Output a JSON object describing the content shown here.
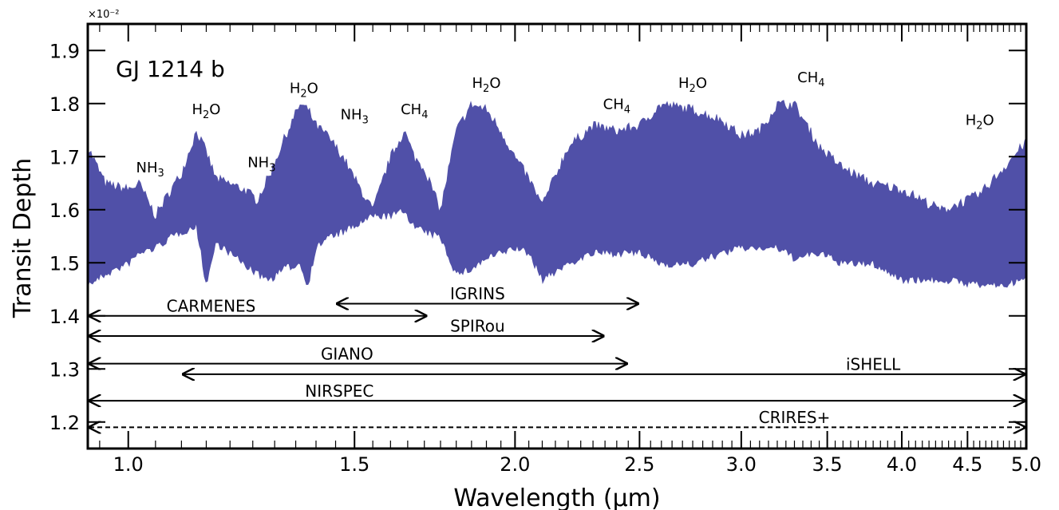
{
  "chart_data": {
    "type": "area",
    "title": "GJ 1214 b",
    "xlabel": "Wavelength (μm)",
    "ylabel": "Transit Depth",
    "y_multiplier": "×10⁻²",
    "x_scale": "log",
    "xlim": [
      0.93,
      5.0
    ],
    "ylim": [
      1.15,
      1.95
    ],
    "xticks": [
      1.0,
      1.5,
      2.0,
      2.5,
      3.0,
      3.5,
      4.0,
      4.5,
      5.0
    ],
    "xtick_labels": [
      "1.0",
      "1.5",
      "2.0",
      "2.5",
      "3.0",
      "3.5",
      "4.0",
      "4.5",
      "5.0"
    ],
    "yticks": [
      1.2,
      1.3,
      1.4,
      1.5,
      1.6,
      1.7,
      1.8,
      1.9
    ],
    "ytick_labels": [
      "1.2",
      "1.3",
      "1.4",
      "1.5",
      "1.6",
      "1.7",
      "1.8",
      "1.9"
    ],
    "color": "#5050a8",
    "spectrum": {
      "x": [
        0.93,
        0.96,
        1.0,
        1.02,
        1.05,
        1.08,
        1.1,
        1.13,
        1.15,
        1.17,
        1.2,
        1.23,
        1.26,
        1.29,
        1.32,
        1.36,
        1.38,
        1.4,
        1.43,
        1.47,
        1.5,
        1.55,
        1.6,
        1.64,
        1.67,
        1.7,
        1.75,
        1.8,
        1.85,
        1.9,
        1.95,
        2.0,
        2.05,
        2.1,
        2.2,
        2.3,
        2.4,
        2.5,
        2.6,
        2.75,
        2.9,
        3.0,
        3.1,
        3.2,
        3.3,
        3.45,
        3.6,
        3.8,
        4.0,
        4.3,
        4.6,
        4.8,
        5.0
      ],
      "upper": [
        1.72,
        1.65,
        1.64,
        1.65,
        1.59,
        1.64,
        1.67,
        1.75,
        1.71,
        1.66,
        1.65,
        1.64,
        1.62,
        1.67,
        1.73,
        1.8,
        1.79,
        1.76,
        1.74,
        1.7,
        1.66,
        1.6,
        1.7,
        1.75,
        1.7,
        1.68,
        1.6,
        1.75,
        1.8,
        1.79,
        1.75,
        1.7,
        1.66,
        1.61,
        1.72,
        1.76,
        1.75,
        1.76,
        1.8,
        1.79,
        1.77,
        1.74,
        1.75,
        1.8,
        1.8,
        1.72,
        1.68,
        1.65,
        1.64,
        1.6,
        1.63,
        1.68,
        1.73
      ],
      "lower": [
        1.46,
        1.48,
        1.5,
        1.52,
        1.53,
        1.55,
        1.56,
        1.57,
        1.46,
        1.54,
        1.52,
        1.5,
        1.48,
        1.47,
        1.49,
        1.5,
        1.46,
        1.53,
        1.55,
        1.56,
        1.57,
        1.59,
        1.59,
        1.6,
        1.57,
        1.56,
        1.55,
        1.48,
        1.49,
        1.51,
        1.52,
        1.53,
        1.52,
        1.47,
        1.5,
        1.52,
        1.52,
        1.52,
        1.5,
        1.5,
        1.52,
        1.53,
        1.53,
        1.53,
        1.51,
        1.52,
        1.5,
        1.5,
        1.47,
        1.47,
        1.46,
        1.46,
        1.47
      ]
    },
    "molecule_labels": [
      {
        "base": "NH",
        "sub": "3",
        "x": 1.04,
        "y": 1.67
      },
      {
        "base": "H",
        "sub": "2",
        "tail": "O",
        "x": 1.15,
        "y": 1.78
      },
      {
        "base": "NH",
        "sub": "3",
        "x": 1.27,
        "y": 1.68
      },
      {
        "base": "H",
        "sub": "2",
        "tail": "O",
        "x": 1.37,
        "y": 1.82
      },
      {
        "base": "NH",
        "sub": "3",
        "x": 1.5,
        "y": 1.77
      },
      {
        "base": "CH",
        "sub": "4",
        "x": 1.67,
        "y": 1.78
      },
      {
        "base": "H",
        "sub": "2",
        "tail": "O",
        "x": 1.9,
        "y": 1.83
      },
      {
        "base": "CH",
        "sub": "4",
        "x": 2.4,
        "y": 1.79
      },
      {
        "base": "H",
        "sub": "2",
        "tail": "O",
        "x": 2.75,
        "y": 1.83
      },
      {
        "base": "CH",
        "sub": "4",
        "x": 3.4,
        "y": 1.84
      },
      {
        "base": "H",
        "sub": "2",
        "tail": "O",
        "x": 4.6,
        "y": 1.76
      }
    ],
    "instruments": [
      {
        "name": "CARMENES",
        "x0": 0.93,
        "x1": 1.71,
        "y": 1.4,
        "label_x": 1.16,
        "label_y": 1.408,
        "style": "solid"
      },
      {
        "name": "IGRINS",
        "x0": 1.45,
        "x1": 2.5,
        "y": 1.423,
        "label_x": 1.87,
        "label_y": 1.431,
        "style": "solid"
      },
      {
        "name": "SPIRou",
        "x0": 0.93,
        "x1": 2.35,
        "y": 1.362,
        "label_x": 1.87,
        "label_y": 1.37,
        "style": "solid"
      },
      {
        "name": "GIANO",
        "x0": 0.93,
        "x1": 2.45,
        "y": 1.31,
        "label_x": 1.48,
        "label_y": 1.318,
        "style": "solid"
      },
      {
        "name": "iSHELL",
        "x0": 1.1,
        "x1": 5.0,
        "y": 1.29,
        "label_x": 3.8,
        "label_y": 1.298,
        "style": "solid"
      },
      {
        "name": "NIRSPEC",
        "x0": 0.93,
        "x1": 5.0,
        "y": 1.24,
        "label_x": 1.46,
        "label_y": 1.248,
        "style": "solid"
      },
      {
        "name": "CRIRES+",
        "x0": 0.93,
        "x1": 5.0,
        "y": 1.19,
        "label_x": 3.3,
        "label_y": 1.198,
        "style": "dashed"
      }
    ]
  }
}
